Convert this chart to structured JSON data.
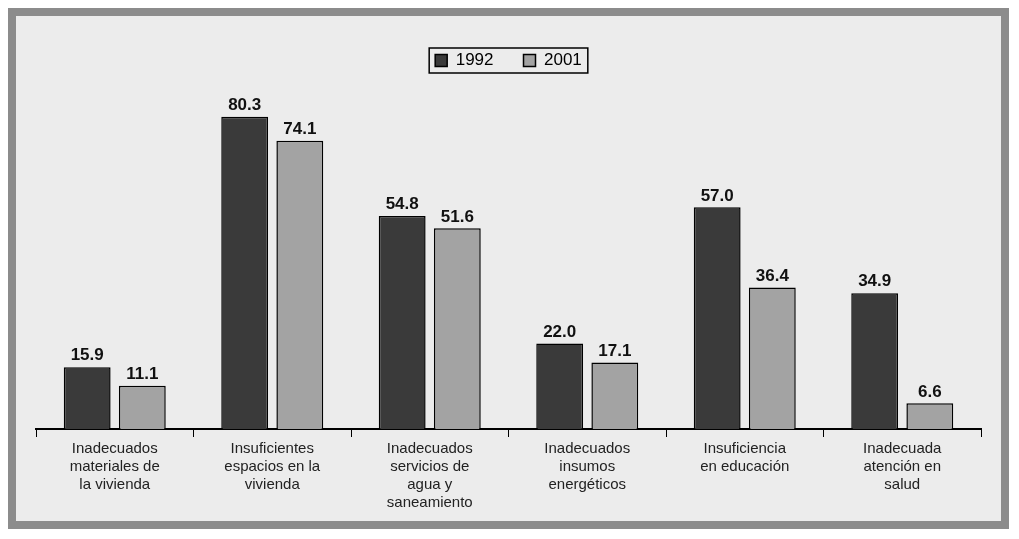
{
  "chart_data": {
    "type": "bar",
    "categories": [
      "Inadecuados materiales de la vivienda",
      "Insuficientes espacios en la vivienda",
      "Inadecuados servicios de agua y saneamiento",
      "Inadecuados insumos energéticos",
      "Insuficiencia en educación",
      "Inadecuada atención en salud"
    ],
    "series": [
      {
        "name": "1992",
        "color": "#3a3a3a",
        "values": [
          15.9,
          80.3,
          54.8,
          22,
          57,
          34.9
        ],
        "value_labels": [
          "15.9",
          "80.3",
          "54.8",
          "22.0",
          "57.0",
          "34.9"
        ]
      },
      {
        "name": "2001",
        "color": "#a3a3a3",
        "values": [
          11.1,
          74.1,
          51.6,
          17.1,
          36.4,
          6.6
        ],
        "value_labels": [
          "11.1",
          "74.1",
          "51.6",
          "17.1",
          "36.4",
          "6.6"
        ]
      }
    ],
    "tick_labels": "x",
    "legend": "top",
    "grid": false
  }
}
